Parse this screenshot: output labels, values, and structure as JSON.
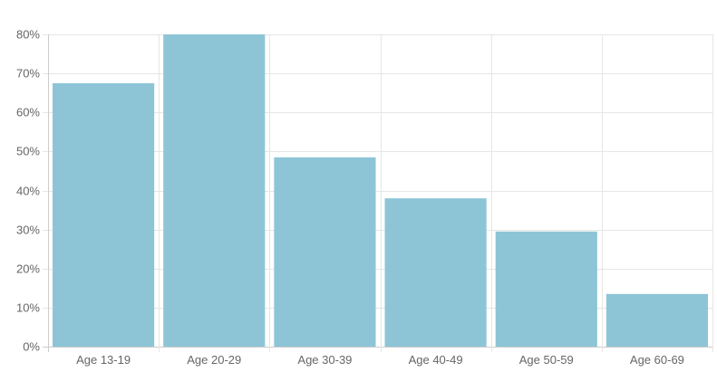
{
  "chart_data": {
    "type": "bar",
    "categories": [
      "Age 13-19",
      "Age 20-29",
      "Age 30-39",
      "Age 40-49",
      "Age 50-59",
      "Age 60-69"
    ],
    "values": [
      67.5,
      80,
      48.5,
      38,
      29.5,
      13.5
    ],
    "ylim": [
      0,
      80
    ],
    "yticks": [
      0,
      10,
      20,
      30,
      40,
      50,
      60,
      70,
      80
    ],
    "ytick_suffix": "%",
    "grid": true,
    "colors": {
      "bar": "#8dc5d7",
      "grid": "#e6e6e6",
      "axis": "#cccccc",
      "text": "#666666"
    }
  }
}
